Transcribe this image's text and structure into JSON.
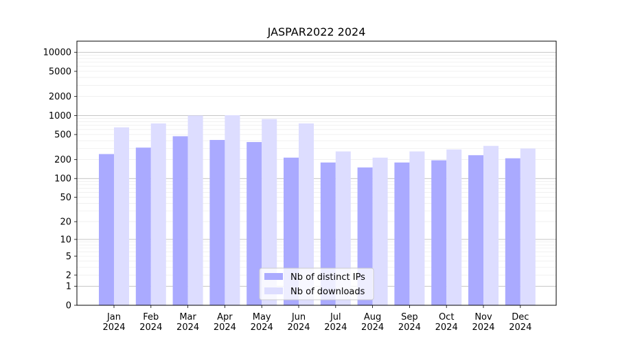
{
  "chart_data": {
    "type": "bar",
    "title": "JASPAR2022 2024",
    "xlabel": "",
    "ylabel": "",
    "scale": "symlog",
    "ylim": [
      0,
      15000
    ],
    "yticks": [
      0,
      1,
      2,
      5,
      10,
      20,
      50,
      100,
      200,
      500,
      1000,
      2000,
      5000,
      10000
    ],
    "categories": [
      "Jan\n2024",
      "Feb\n2024",
      "Mar\n2024",
      "Apr\n2024",
      "May\n2024",
      "Jun\n2024",
      "Jul\n2024",
      "Aug\n2024",
      "Sep\n2024",
      "Oct\n2024",
      "Nov\n2024",
      "Dec\n2024"
    ],
    "series": [
      {
        "name": "Nb of distinct IPs",
        "color": "#aaaaff",
        "values": [
          245,
          310,
          470,
          410,
          380,
          215,
          180,
          150,
          180,
          195,
          235,
          210
        ]
      },
      {
        "name": "Nb of downloads",
        "color": "#ddddff",
        "values": [
          650,
          750,
          1000,
          1010,
          880,
          750,
          270,
          215,
          270,
          290,
          330,
          300
        ]
      }
    ],
    "grid": true,
    "legend_position": "lower-center"
  }
}
